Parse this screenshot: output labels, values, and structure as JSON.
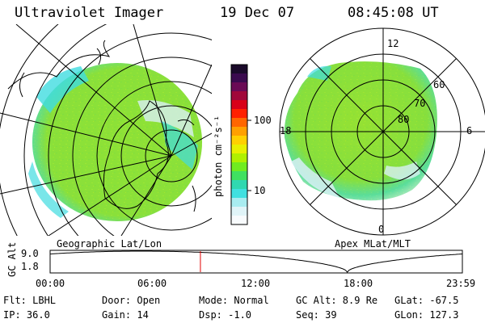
{
  "header": {
    "instrument": "Ultraviolet Imager",
    "date": "19 Dec 07",
    "time": "08:45:08 UT"
  },
  "colorbar": {
    "unit_label": "photon cm⁻²s⁻¹",
    "tick_labels": [
      "100",
      "10"
    ],
    "colors": [
      "#1a0a2a",
      "#3a0a4e",
      "#6a0a55",
      "#a0083a",
      "#d80018",
      "#ff2000",
      "#ff6600",
      "#ffa000",
      "#ffd000",
      "#e8f000",
      "#b0f000",
      "#70ec20",
      "#40e060",
      "#30d8b0",
      "#40e0e0",
      "#a8ecf0",
      "#e0f4f8",
      "#f8fbfd"
    ]
  },
  "geo_panel": {
    "label": "Geographic Lat/Lon",
    "colors": {
      "aurora_green": "#8ae03a",
      "cyan": "#40dce0",
      "pale": "#d8f0f4"
    }
  },
  "apex_panel": {
    "label": "Apex MLat/MLT",
    "mlt_labels": {
      "top": "12",
      "right": "6",
      "bottom": "0",
      "left": "18"
    },
    "mlat_labels": [
      "60",
      "70",
      "80"
    ]
  },
  "orbit_plot": {
    "ylabel": "GC Alt",
    "ytick_labels": [
      "9.0",
      "1.8"
    ],
    "xtick_labels": [
      "00:00",
      "06:00",
      "12:00",
      "18:00",
      "23:59"
    ],
    "x_range_hours": [
      0,
      24
    ],
    "y_range": [
      1.8,
      9.0
    ],
    "current_time_hours": 8.75,
    "marker_color": "#e00000"
  },
  "footer": {
    "flt": "Flt: LBHL",
    "door": "Door: Open",
    "mode": "Mode: Normal",
    "gc_alt": "GC Alt: 8.9 Re",
    "glat": "GLat: -67.5",
    "ip": "IP: 36.0",
    "gain": "Gain: 14",
    "dsp": "Dsp:   -1.0",
    "seq": "Seq: 39",
    "glon": "GLon: 127.3"
  }
}
